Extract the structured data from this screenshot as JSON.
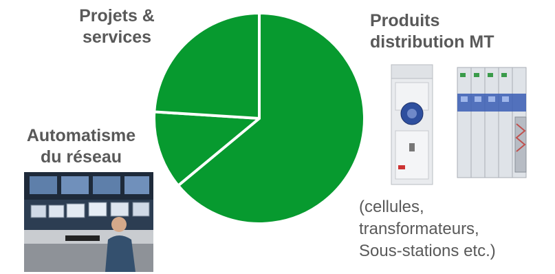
{
  "chart_data": {
    "type": "pie",
    "title": "",
    "slice_color": "#079a2f",
    "separator_color": "#ffffff",
    "start_angle_deg": 0,
    "direction": "clockwise",
    "slices": [
      {
        "label": "Produits distribution MT",
        "value": 64
      },
      {
        "label": "Automatisme du réseau",
        "value": 12
      },
      {
        "label": "Projets & services",
        "value": 24
      }
    ]
  },
  "labels": {
    "projets": [
      "Projets &",
      "services"
    ],
    "produits": [
      "Produits",
      "distribution MT"
    ],
    "automatisme": [
      "Automatisme",
      "du réseau"
    ],
    "produits_detail": [
      "(cellules,",
      "transformateurs,",
      "Sous-stations etc.)"
    ]
  },
  "images": {
    "switchgear_photo": "switchgear-cabinets",
    "control_room_photo": "control-room-operator"
  }
}
